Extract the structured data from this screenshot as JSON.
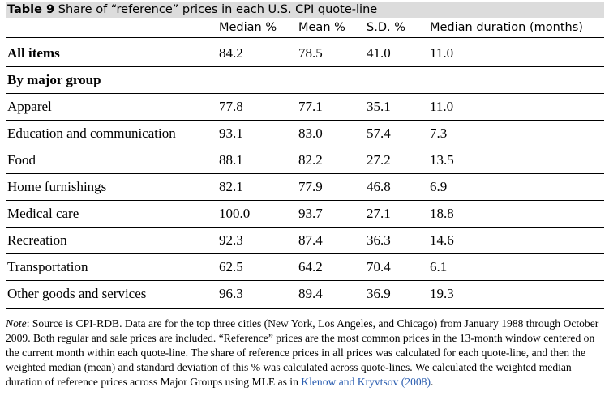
{
  "caption": {
    "label": "Table 9",
    "title": "Share of “reference” prices in each U.S. CPI quote-line"
  },
  "columns": [
    "Median %",
    "Mean %",
    "S.D. %",
    "Median duration (months)"
  ],
  "all_items": {
    "label": "All items",
    "values": [
      "84.2",
      "78.5",
      "41.0",
      "11.0"
    ]
  },
  "group_heading": "By major group",
  "rows": [
    {
      "label": "Apparel",
      "values": [
        "77.8",
        "77.1",
        "35.1",
        "11.0"
      ]
    },
    {
      "label": "Education and communication",
      "values": [
        "93.1",
        "83.0",
        "57.4",
        "7.3"
      ]
    },
    {
      "label": "Food",
      "values": [
        "88.1",
        "82.2",
        "27.2",
        "13.5"
      ]
    },
    {
      "label": "Home furnishings",
      "values": [
        "82.1",
        "77.9",
        "46.8",
        "6.9"
      ]
    },
    {
      "label": "Medical care",
      "values": [
        "100.0",
        "93.7",
        "27.1",
        "18.8"
      ]
    },
    {
      "label": "Recreation",
      "values": [
        "92.3",
        "87.4",
        "36.3",
        "14.6"
      ]
    },
    {
      "label": "Transportation",
      "values": [
        "62.5",
        "64.2",
        "70.4",
        "6.1"
      ]
    },
    {
      "label": "Other goods and services",
      "values": [
        "96.3",
        "89.4",
        "36.9",
        "19.3"
      ]
    }
  ],
  "note": {
    "label": "Note",
    "text": ": Source is CPI-RDB. Data are for the top three cities (New York, Los Angeles, and Chicago) from January 1988 through October 2009. Both regular and sale prices are included. “Reference” prices are the most common prices in the 13-month window centered on the current month within each quote-line. The share of reference prices in all prices was calculated for each quote-line, and then the weighted median (mean) and standard deviation of this % was calculated across quote-lines. We calculated the weighted median duration of reference prices across Major Groups using MLE as in ",
    "citation": "Klenow and Kryvtsov (2008)",
    "end": "."
  }
}
